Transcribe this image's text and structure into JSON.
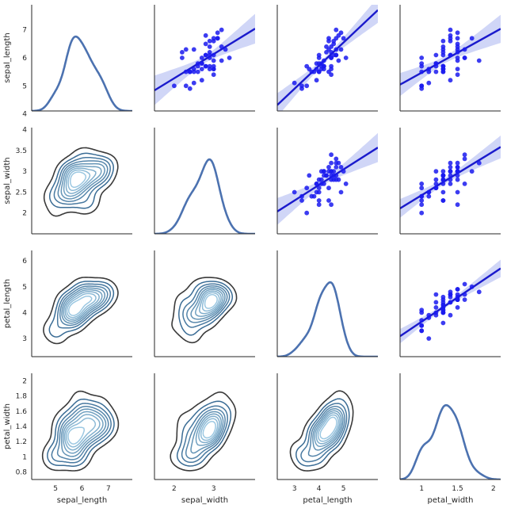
{
  "chart_data": {
    "type": "pairgrid",
    "variables": [
      "sepal_length",
      "sepal_width",
      "petal_length",
      "petal_width"
    ],
    "ranges": [
      [
        4.1,
        7.9
      ],
      [
        1.5,
        4.05
      ],
      [
        2.3,
        6.4
      ],
      [
        0.7,
        2.1
      ]
    ],
    "ticks": [
      [
        5,
        6,
        7
      ],
      [
        2.0,
        2.5,
        3.0,
        3.5,
        4.0
      ],
      [
        3,
        4,
        5,
        6
      ],
      [
        0.8,
        1.0,
        1.2,
        1.4,
        1.6,
        1.8,
        2.0
      ]
    ],
    "x_ticks": [
      [
        5,
        6,
        7
      ],
      [
        2,
        3
      ],
      [
        3,
        4,
        5
      ],
      [
        1.0,
        1.5,
        2.0
      ]
    ],
    "y_ticks": [
      [
        4,
        5,
        6,
        7
      ],
      [
        2.0,
        2.5,
        3.0,
        3.5,
        4.0
      ],
      [
        3,
        4,
        5,
        6
      ],
      [
        0.8,
        1.0,
        1.2,
        1.4,
        1.6,
        1.8,
        2.0
      ]
    ],
    "diagonal": "kde",
    "lower": "kde_contours",
    "upper": "regplot",
    "colors": {
      "scatter": "#1a1aee",
      "regression": "#1a1acc",
      "ci_band": "#aab4f0",
      "diag_line": "#4c72b0",
      "contour_dark": "#3a3a3a",
      "contour_light": "#9cc8e2"
    },
    "points": [
      [
        7.0,
        3.2,
        4.7,
        1.4
      ],
      [
        6.4,
        3.2,
        4.5,
        1.5
      ],
      [
        6.9,
        3.1,
        4.9,
        1.5
      ],
      [
        5.5,
        2.3,
        4.0,
        1.3
      ],
      [
        6.5,
        2.8,
        4.6,
        1.5
      ],
      [
        5.7,
        2.8,
        4.5,
        1.3
      ],
      [
        6.3,
        3.3,
        4.7,
        1.6
      ],
      [
        4.9,
        2.4,
        3.3,
        1.0
      ],
      [
        6.6,
        2.9,
        4.6,
        1.3
      ],
      [
        5.2,
        2.7,
        3.9,
        1.4
      ],
      [
        5.0,
        2.0,
        3.5,
        1.0
      ],
      [
        5.9,
        3.0,
        4.2,
        1.5
      ],
      [
        6.0,
        2.2,
        4.0,
        1.0
      ],
      [
        6.1,
        2.9,
        4.7,
        1.4
      ],
      [
        5.6,
        2.9,
        3.6,
        1.3
      ],
      [
        6.7,
        3.1,
        4.4,
        1.4
      ],
      [
        5.6,
        3.0,
        4.5,
        1.5
      ],
      [
        5.8,
        2.7,
        4.1,
        1.0
      ],
      [
        6.2,
        2.2,
        4.5,
        1.5
      ],
      [
        5.6,
        2.5,
        3.9,
        1.1
      ],
      [
        5.9,
        3.2,
        4.8,
        1.8
      ],
      [
        6.1,
        2.8,
        4.0,
        1.3
      ],
      [
        6.3,
        2.5,
        4.9,
        1.5
      ],
      [
        6.1,
        2.8,
        4.7,
        1.2
      ],
      [
        6.4,
        2.9,
        4.3,
        1.3
      ],
      [
        6.6,
        3.0,
        4.4,
        1.4
      ],
      [
        6.8,
        2.8,
        4.8,
        1.4
      ],
      [
        6.7,
        3.0,
        5.0,
        1.7
      ],
      [
        6.0,
        2.9,
        4.5,
        1.5
      ],
      [
        5.7,
        2.6,
        3.5,
        1.0
      ],
      [
        5.5,
        2.4,
        3.8,
        1.1
      ],
      [
        5.5,
        2.4,
        3.7,
        1.0
      ],
      [
        5.8,
        2.7,
        3.9,
        1.2
      ],
      [
        6.0,
        2.7,
        5.1,
        1.6
      ],
      [
        5.4,
        3.0,
        4.5,
        1.5
      ],
      [
        6.0,
        3.4,
        4.5,
        1.6
      ],
      [
        6.7,
        3.1,
        4.7,
        1.5
      ],
      [
        6.3,
        2.3,
        4.4,
        1.3
      ],
      [
        5.6,
        3.0,
        4.1,
        1.3
      ],
      [
        5.5,
        2.5,
        4.0,
        1.3
      ],
      [
        5.5,
        2.6,
        4.4,
        1.2
      ],
      [
        6.1,
        3.0,
        4.6,
        1.4
      ],
      [
        5.8,
        2.6,
        4.0,
        1.2
      ],
      [
        5.0,
        2.3,
        3.3,
        1.0
      ],
      [
        5.6,
        2.7,
        4.2,
        1.3
      ],
      [
        5.7,
        3.0,
        4.2,
        1.2
      ],
      [
        5.7,
        2.9,
        4.2,
        1.3
      ],
      [
        6.2,
        2.9,
        4.3,
        1.3
      ],
      [
        5.1,
        2.5,
        3.0,
        1.1
      ],
      [
        5.7,
        2.8,
        4.1,
        1.3
      ]
    ]
  }
}
